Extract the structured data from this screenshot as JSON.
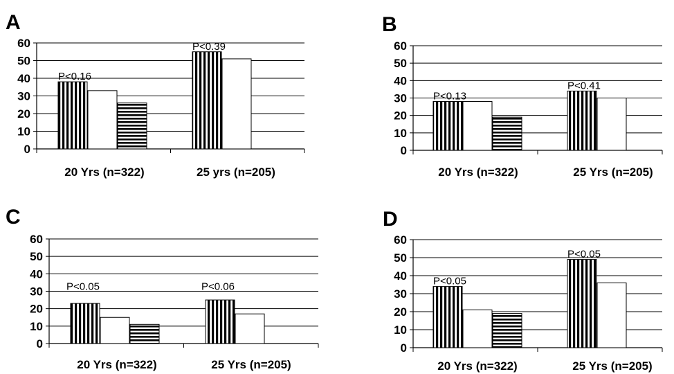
{
  "chart_data": [
    {
      "type": "bar",
      "panel": "A",
      "categories": [
        "20 Yrs (n=322)",
        "25 yrs (n=205)"
      ],
      "series": [
        {
          "pattern": "vertical-stripes",
          "values": [
            38,
            55
          ]
        },
        {
          "pattern": "white",
          "values": [
            33,
            51
          ]
        },
        {
          "pattern": "horizontal-stripes",
          "values": [
            26,
            null
          ]
        }
      ],
      "annotations": [
        "P<0.16",
        "P<0.39"
      ],
      "yticks": [
        "0",
        "10",
        "20",
        "30",
        "40",
        "50",
        "60"
      ],
      "ylim": [
        0,
        60
      ],
      "grid": true
    },
    {
      "type": "bar",
      "panel": "B",
      "categories": [
        "20 Yrs (n=322)",
        "25 Yrs (n=205)"
      ],
      "series": [
        {
          "pattern": "vertical-stripes",
          "values": [
            28,
            34
          ]
        },
        {
          "pattern": "white",
          "values": [
            28,
            30
          ]
        },
        {
          "pattern": "horizontal-stripes",
          "values": [
            19,
            null
          ]
        }
      ],
      "annotations": [
        "P<0.13",
        "P<0.41"
      ],
      "yticks": [
        "0",
        "10",
        "20",
        "30",
        "40",
        "50",
        "60"
      ],
      "ylim": [
        0,
        60
      ],
      "grid": true
    },
    {
      "type": "bar",
      "panel": "C",
      "categories": [
        "20 Yrs (n=322)",
        "25 Yrs (n=205)"
      ],
      "series": [
        {
          "pattern": "vertical-stripes",
          "values": [
            23,
            25
          ]
        },
        {
          "pattern": "white",
          "values": [
            15,
            17
          ]
        },
        {
          "pattern": "horizontal-stripes",
          "values": [
            11,
            null
          ]
        }
      ],
      "annotations": [
        "P<0.05",
        "P<0.06"
      ],
      "yticks": [
        "0",
        "10",
        "20",
        "30",
        "40",
        "50",
        "60"
      ],
      "ylim": [
        0,
        60
      ],
      "grid": true
    },
    {
      "type": "bar",
      "panel": "D",
      "categories": [
        "20 Yrs (n=322)",
        "25 Yrs (n=205)"
      ],
      "series": [
        {
          "pattern": "vertical-stripes",
          "values": [
            34,
            49
          ]
        },
        {
          "pattern": "white",
          "values": [
            21,
            36
          ]
        },
        {
          "pattern": "horizontal-stripes",
          "values": [
            19,
            null
          ]
        }
      ],
      "annotations": [
        "P<0.05",
        "P<0.05"
      ],
      "yticks": [
        "0",
        "10",
        "20",
        "30",
        "40",
        "50",
        "60"
      ],
      "ylim": [
        0,
        60
      ],
      "grid": true
    }
  ],
  "colors": {
    "bar_edge": "#000000",
    "bar_fill": "#ffffff",
    "grid": "#000000"
  }
}
